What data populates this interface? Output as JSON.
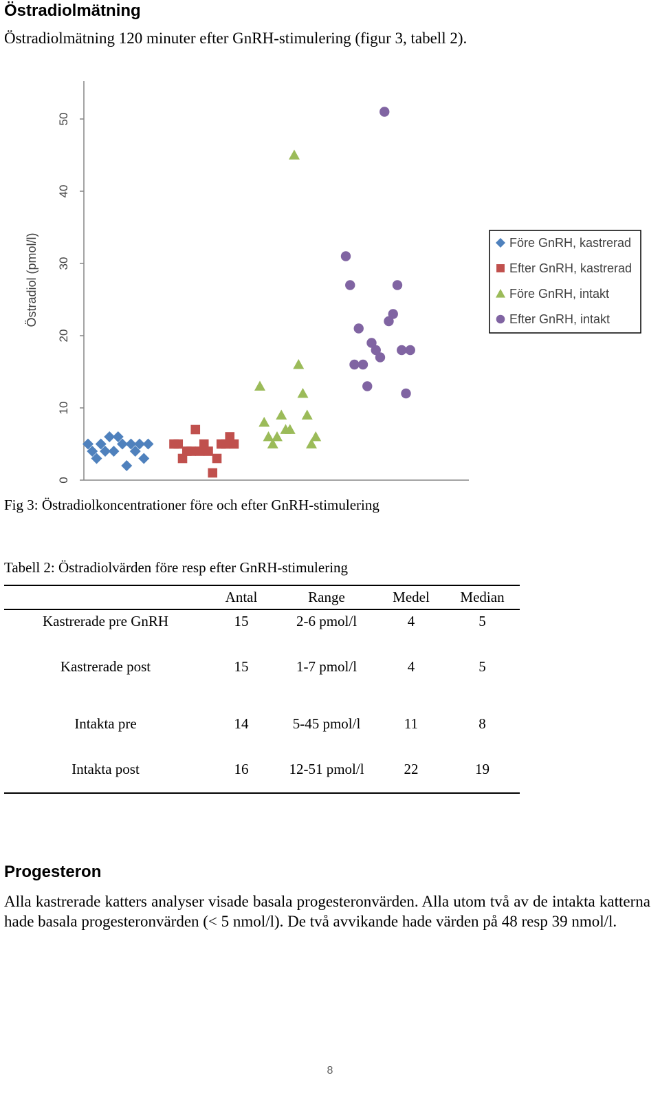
{
  "section1": {
    "heading": "Östradiolmätning",
    "intro": "Östradiolmätning 120 minuter efter GnRH-stimulering (figur 3, tabell 2)."
  },
  "figure": {
    "caption": "Fig 3: Östradiolkoncentrationer före och efter GnRH-stimulering"
  },
  "chart_data": {
    "type": "scatter",
    "title": "",
    "xlabel": "",
    "ylabel": "Östradiol (pmol/l)",
    "ylim": [
      0,
      55
    ],
    "yticks": [
      "0",
      "10",
      "20",
      "30",
      "40",
      "50"
    ],
    "grid": false,
    "legend_position": "right",
    "series": [
      {
        "name": "Före GnRH, kastrerad",
        "marker": "diamond",
        "color": "#4F81BD",
        "x": [
          1,
          1.1,
          1.2,
          1.3,
          1.4,
          1.5,
          1.6,
          1.7,
          1.8,
          1.9,
          2.0,
          2.1,
          2.2,
          2.3,
          2.4
        ],
        "y": [
          5,
          4,
          3,
          5,
          4,
          6,
          4,
          6,
          5,
          2,
          5,
          4,
          5,
          3,
          5
        ]
      },
      {
        "name": "Efter GnRH, kastrerad",
        "marker": "square",
        "color": "#C0504D",
        "x": [
          3.0,
          3.1,
          3.2,
          3.3,
          3.4,
          3.5,
          3.6,
          3.7,
          3.8,
          3.9,
          4.0,
          4.1,
          4.2,
          4.3,
          4.4
        ],
        "y": [
          5,
          5,
          3,
          4,
          4,
          7,
          4,
          5,
          4,
          1,
          3,
          5,
          5,
          6,
          5
        ]
      },
      {
        "name": "Före GnRH, intakt",
        "marker": "triangle",
        "color": "#9BBB59",
        "x": [
          5.0,
          5.1,
          5.2,
          5.3,
          5.4,
          5.5,
          5.6,
          5.7,
          5.8,
          5.9,
          6.0,
          6.1,
          6.2,
          6.3
        ],
        "y": [
          13,
          8,
          6,
          5,
          6,
          9,
          7,
          7,
          45,
          16,
          12,
          9,
          5,
          6
        ]
      },
      {
        "name": "Efter GnRH, intakt",
        "marker": "circle",
        "color": "#8064A2",
        "x": [
          7.0,
          7.1,
          7.2,
          7.3,
          7.4,
          7.5,
          7.6,
          7.7,
          7.8,
          7.9,
          8.0,
          8.1,
          8.2,
          8.3,
          8.4,
          8.5
        ],
        "y": [
          31,
          27,
          16,
          21,
          16,
          13,
          19,
          18,
          17,
          51,
          22,
          23,
          27,
          18,
          12,
          18
        ]
      }
    ]
  },
  "table": {
    "caption": "Tabell 2: Östradiolvärden före resp efter GnRH-stimulering",
    "headers": [
      "",
      "Antal",
      "Range",
      "Medel",
      "Median"
    ],
    "rows": [
      [
        "Kastrerade pre GnRH",
        "15",
        "2-6 pmol/l",
        "4",
        "5"
      ],
      [
        "Kastrerade post",
        "15",
        "1-7 pmol/l",
        "4",
        "5"
      ],
      [
        "Intakta pre",
        "14",
        "5-45 pmol/l",
        "11",
        "8"
      ],
      [
        "Intakta post",
        "16",
        "12-51 pmol/l",
        "22",
        "19"
      ]
    ]
  },
  "section2": {
    "heading": "Progesteron",
    "body": "Alla kastrerade katters analyser visade basala progesteronvärden. Alla utom två av de intakta katterna hade basala progesteronvärden (< 5 nmol/l). De två avvikande hade värden på 48 resp 39 nmol/l."
  },
  "footer": {
    "page_number": "8"
  }
}
